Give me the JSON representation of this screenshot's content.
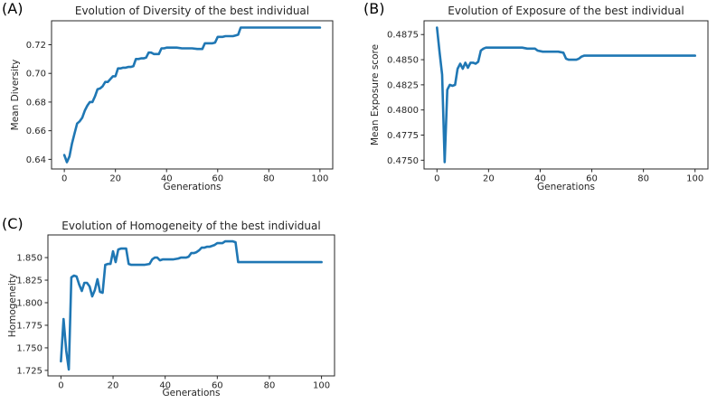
{
  "figure": {
    "background": "#ffffff",
    "axis_color": "#262626",
    "text_color": "#262626"
  },
  "chart_data": [
    {
      "type": "line",
      "panel_label": "(A)",
      "title": "Evolution of Diversity of the best individual",
      "xlabel": "Generations",
      "ylabel": "Mean Diversity",
      "line_color": "#1f77b4",
      "grid": false,
      "legend": false,
      "xlim": [
        -5,
        105
      ],
      "ylim": [
        0.6333,
        0.7367
      ],
      "xticks": [
        0,
        20,
        40,
        60,
        80,
        100
      ],
      "xtick_labels": [
        "0",
        "20",
        "40",
        "60",
        "80",
        "100"
      ],
      "yticks": [
        0.64,
        0.66,
        0.68,
        0.7,
        0.72
      ],
      "ytick_labels": [
        "0.64",
        "0.66",
        "0.68",
        "0.70",
        "0.72"
      ],
      "points": [
        [
          0,
          0.643
        ],
        [
          1,
          0.638
        ],
        [
          2,
          0.642
        ],
        [
          3,
          0.651
        ],
        [
          4,
          0.658
        ],
        [
          5,
          0.665
        ],
        [
          6,
          0.6665
        ],
        [
          7,
          0.669
        ],
        [
          8,
          0.674
        ],
        [
          9,
          0.6775
        ],
        [
          10,
          0.68
        ],
        [
          11,
          0.68
        ],
        [
          12,
          0.684
        ],
        [
          13,
          0.689
        ],
        [
          14,
          0.6895
        ],
        [
          15,
          0.691
        ],
        [
          16,
          0.694
        ],
        [
          17,
          0.694
        ],
        [
          18,
          0.696
        ],
        [
          19,
          0.698
        ],
        [
          20,
          0.698
        ],
        [
          21,
          0.7035
        ],
        [
          22,
          0.7035
        ],
        [
          23,
          0.704
        ],
        [
          24,
          0.704
        ],
        [
          25,
          0.7045
        ],
        [
          26,
          0.7045
        ],
        [
          27,
          0.705
        ],
        [
          28,
          0.71
        ],
        [
          29,
          0.71
        ],
        [
          30,
          0.7105
        ],
        [
          31,
          0.7105
        ],
        [
          32,
          0.711
        ],
        [
          33,
          0.7145
        ],
        [
          34,
          0.7145
        ],
        [
          35,
          0.7135
        ],
        [
          36,
          0.7135
        ],
        [
          37,
          0.7135
        ],
        [
          38,
          0.7175
        ],
        [
          39,
          0.7175
        ],
        [
          40,
          0.718
        ],
        [
          42,
          0.718
        ],
        [
          44,
          0.718
        ],
        [
          46,
          0.7175
        ],
        [
          48,
          0.7175
        ],
        [
          50,
          0.7175
        ],
        [
          52,
          0.717
        ],
        [
          54,
          0.717
        ],
        [
          55,
          0.721
        ],
        [
          56,
          0.721
        ],
        [
          57,
          0.721
        ],
        [
          58,
          0.721
        ],
        [
          59,
          0.7215
        ],
        [
          60,
          0.7255
        ],
        [
          61,
          0.7255
        ],
        [
          62,
          0.7255
        ],
        [
          63,
          0.726
        ],
        [
          64,
          0.726
        ],
        [
          65,
          0.726
        ],
        [
          66,
          0.726
        ],
        [
          67,
          0.7265
        ],
        [
          68,
          0.727
        ],
        [
          69,
          0.732
        ],
        [
          70,
          0.732
        ],
        [
          80,
          0.732
        ],
        [
          90,
          0.732
        ],
        [
          100,
          0.732
        ]
      ]
    },
    {
      "type": "line",
      "panel_label": "(B)",
      "title": "Evolution of Exposure of the best individual",
      "xlabel": "Generations",
      "ylabel": "Mean Exposure score",
      "line_color": "#1f77b4",
      "grid": false,
      "legend": false,
      "xlim": [
        -5,
        105
      ],
      "ylim": [
        0.47413,
        0.48887
      ],
      "xticks": [
        0,
        20,
        40,
        60,
        80,
        100
      ],
      "xtick_labels": [
        "0",
        "20",
        "40",
        "60",
        "80",
        "100"
      ],
      "yticks": [
        0.475,
        0.4775,
        0.48,
        0.4825,
        0.485,
        0.4875
      ],
      "ytick_labels": [
        "0.4750",
        "0.4775",
        "0.4800",
        "0.4825",
        "0.4850",
        "0.4875"
      ],
      "points": [
        [
          0,
          0.4882
        ],
        [
          1,
          0.4858
        ],
        [
          2,
          0.4835
        ],
        [
          3,
          0.4748
        ],
        [
          4,
          0.482
        ],
        [
          5,
          0.4825
        ],
        [
          6,
          0.4824
        ],
        [
          7,
          0.4825
        ],
        [
          8,
          0.4841
        ],
        [
          9,
          0.4846
        ],
        [
          10,
          0.4841
        ],
        [
          11,
          0.4847
        ],
        [
          12,
          0.4842
        ],
        [
          13,
          0.4847
        ],
        [
          14,
          0.4847
        ],
        [
          15,
          0.4846
        ],
        [
          16,
          0.4848
        ],
        [
          17,
          0.4859
        ],
        [
          18,
          0.4861
        ],
        [
          19,
          0.4862
        ],
        [
          21,
          0.4862
        ],
        [
          24,
          0.4862
        ],
        [
          27,
          0.4862
        ],
        [
          30,
          0.4862
        ],
        [
          33,
          0.4862
        ],
        [
          35,
          0.4861
        ],
        [
          38,
          0.4861
        ],
        [
          39,
          0.4859
        ],
        [
          41,
          0.4858
        ],
        [
          44,
          0.4858
        ],
        [
          47,
          0.4858
        ],
        [
          49,
          0.4857
        ],
        [
          50,
          0.4851
        ],
        [
          51,
          0.485
        ],
        [
          53,
          0.485
        ],
        [
          54,
          0.485
        ],
        [
          55,
          0.4851
        ],
        [
          56,
          0.4853
        ],
        [
          57,
          0.4854
        ],
        [
          60,
          0.4854
        ],
        [
          70,
          0.4854
        ],
        [
          80,
          0.4854
        ],
        [
          90,
          0.4854
        ],
        [
          100,
          0.4854
        ]
      ]
    },
    {
      "type": "line",
      "panel_label": "(C)",
      "title": "Evolution of Homogeneity of the best individual",
      "xlabel": "Generations",
      "ylabel": "Homogeneity",
      "line_color": "#1f77b4",
      "grid": false,
      "legend": false,
      "xlim": [
        -5,
        105
      ],
      "ylim": [
        1.7189,
        1.8751
      ],
      "xticks": [
        0,
        20,
        40,
        60,
        80,
        100
      ],
      "xtick_labels": [
        "0",
        "20",
        "40",
        "60",
        "80",
        "100"
      ],
      "yticks": [
        1.725,
        1.75,
        1.775,
        1.8,
        1.825,
        1.85
      ],
      "ytick_labels": [
        "1.725",
        "1.750",
        "1.775",
        "1.800",
        "1.825",
        "1.850"
      ],
      "points": [
        [
          0,
          1.735
        ],
        [
          1,
          1.782
        ],
        [
          2,
          1.747
        ],
        [
          3,
          1.726
        ],
        [
          4,
          1.828
        ],
        [
          5,
          1.83
        ],
        [
          6,
          1.829
        ],
        [
          7,
          1.82
        ],
        [
          8,
          1.813
        ],
        [
          9,
          1.822
        ],
        [
          10,
          1.822
        ],
        [
          11,
          1.818
        ],
        [
          12,
          1.807
        ],
        [
          13,
          1.814
        ],
        [
          14,
          1.826
        ],
        [
          15,
          1.812
        ],
        [
          16,
          1.811
        ],
        [
          17,
          1.842
        ],
        [
          18,
          1.843
        ],
        [
          19,
          1.843
        ],
        [
          20,
          1.857
        ],
        [
          21,
          1.845
        ],
        [
          22,
          1.859
        ],
        [
          23,
          1.86
        ],
        [
          24,
          1.86
        ],
        [
          25,
          1.86
        ],
        [
          26,
          1.843
        ],
        [
          27,
          1.842
        ],
        [
          28,
          1.842
        ],
        [
          30,
          1.842
        ],
        [
          32,
          1.842
        ],
        [
          34,
          1.843
        ],
        [
          35,
          1.848
        ],
        [
          36,
          1.85
        ],
        [
          37,
          1.85
        ],
        [
          38,
          1.847
        ],
        [
          39,
          1.848
        ],
        [
          41,
          1.848
        ],
        [
          43,
          1.848
        ],
        [
          45,
          1.849
        ],
        [
          46,
          1.85
        ],
        [
          48,
          1.85
        ],
        [
          49,
          1.851
        ],
        [
          50,
          1.855
        ],
        [
          51,
          1.855
        ],
        [
          52,
          1.856
        ],
        [
          53,
          1.858
        ],
        [
          54,
          1.861
        ],
        [
          55,
          1.861
        ],
        [
          56,
          1.862
        ],
        [
          57,
          1.862
        ],
        [
          58,
          1.863
        ],
        [
          59,
          1.864
        ],
        [
          60,
          1.866
        ],
        [
          61,
          1.866
        ],
        [
          62,
          1.866
        ],
        [
          63,
          1.868
        ],
        [
          64,
          1.868
        ],
        [
          65,
          1.868
        ],
        [
          66,
          1.868
        ],
        [
          67,
          1.867
        ],
        [
          68,
          1.845
        ],
        [
          70,
          1.845
        ],
        [
          80,
          1.845
        ],
        [
          90,
          1.845
        ],
        [
          100,
          1.845
        ]
      ]
    }
  ]
}
